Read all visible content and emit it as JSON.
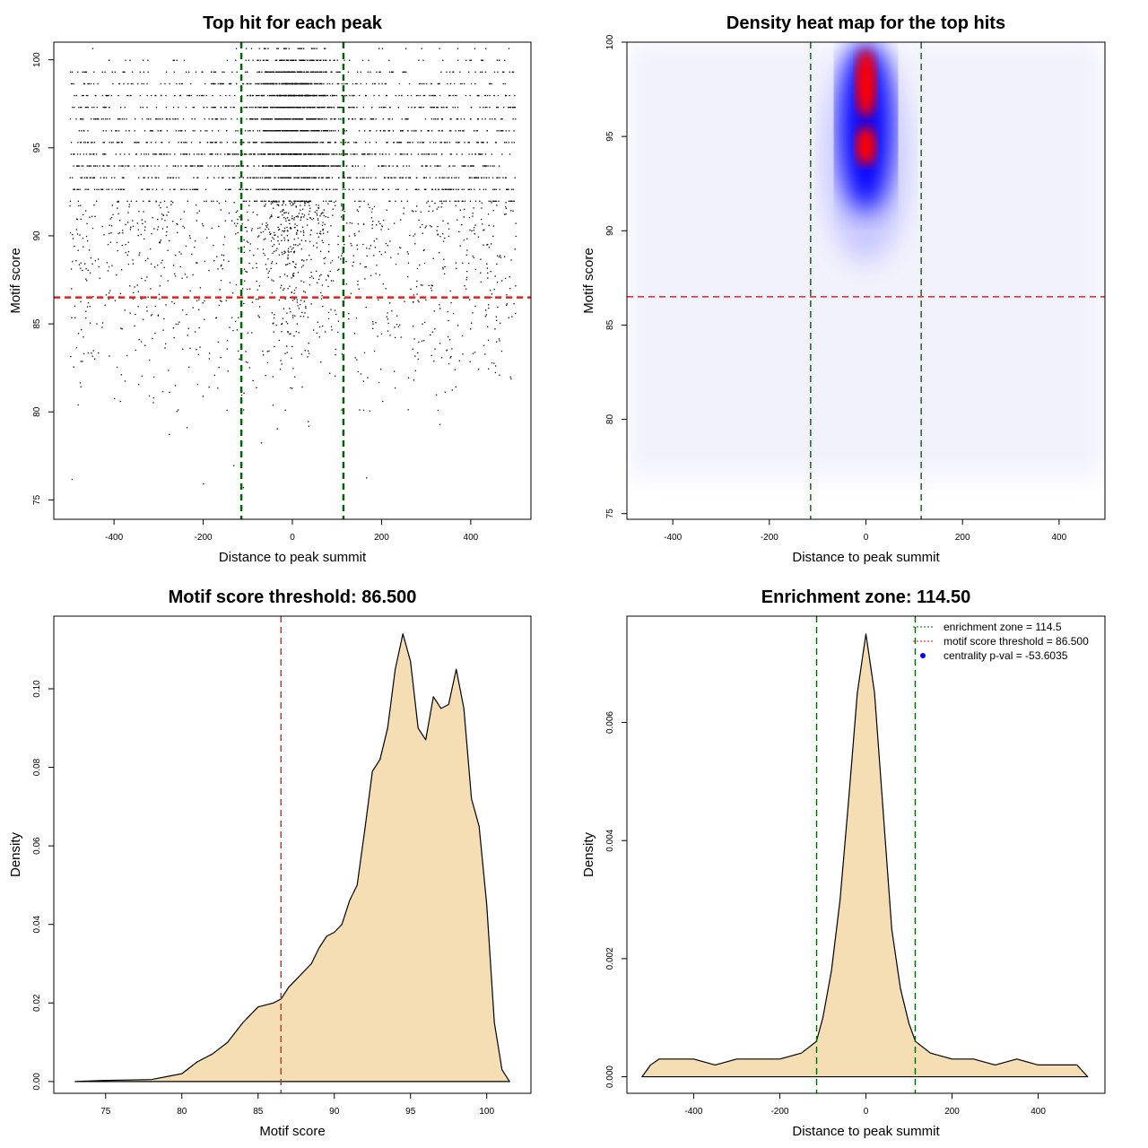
{
  "chart_data": [
    {
      "type": "scatter",
      "title": "Top hit for each peak",
      "xlabel": "Distance to peak summit",
      "ylabel": "Motif score",
      "xlim": [
        -535,
        535
      ],
      "ylim": [
        73.9,
        101
      ],
      "xticks": [
        -400,
        -200,
        0,
        200,
        400
      ],
      "yticks": [
        75,
        80,
        85,
        90,
        95,
        100
      ],
      "vlines": [
        -114.5,
        114.5
      ],
      "hline": 86.5,
      "points_summary": {
        "n": 4500,
        "x_range": [
          -500,
          500
        ],
        "central_fraction": 0.55,
        "central_sd": 45
      }
    },
    {
      "type": "heatmap",
      "title": "Density heat map for the top hits",
      "xlabel": "Distance to peak summit",
      "ylabel": "Motif score",
      "xlim": [
        -495,
        495
      ],
      "ylim": [
        74.7,
        100
      ],
      "xticks": [
        -400,
        -200,
        0,
        200,
        400
      ],
      "yticks": [
        75,
        80,
        85,
        90,
        95,
        100
      ],
      "vlines": [
        -114.5,
        114.5
      ],
      "hline": 86.5,
      "hotspots": [
        {
          "x": 0,
          "y": 97.8,
          "level": "high"
        },
        {
          "x": 0,
          "y": 94.5,
          "level": "high"
        }
      ],
      "colors": {
        "low": "#ffffff",
        "mid": "#0000ff",
        "high": "#ff0000"
      }
    },
    {
      "type": "area",
      "title": "Motif score threshold: 86.500",
      "xlabel": "Motif score",
      "ylabel": "Density",
      "xlim": [
        71.6,
        102.9
      ],
      "ylim": [
        -0.003,
        0.1185
      ],
      "xticks": [
        75,
        80,
        85,
        90,
        95,
        100
      ],
      "yticks": [
        0.0,
        0.02,
        0.04,
        0.06,
        0.08,
        0.1
      ],
      "ytick_labels": [
        "0.00",
        "0.02",
        "0.04",
        "0.06",
        "0.08",
        "0.10"
      ],
      "vlines": [
        86.5
      ],
      "x": [
        73,
        75,
        78,
        80,
        81,
        82,
        83,
        84,
        85,
        86,
        86.5,
        87,
        88,
        88.5,
        89,
        89.5,
        90,
        90.5,
        91,
        91.5,
        92,
        92.5,
        93,
        93.5,
        94,
        94.5,
        95,
        95.5,
        96,
        96.5,
        97,
        97.5,
        98,
        98.5,
        99,
        99.5,
        100,
        100.5,
        101,
        101.5
      ],
      "y": [
        0,
        0.0003,
        0.0005,
        0.002,
        0.005,
        0.007,
        0.01,
        0.015,
        0.019,
        0.02,
        0.021,
        0.024,
        0.028,
        0.03,
        0.034,
        0.037,
        0.038,
        0.04,
        0.046,
        0.05,
        0.064,
        0.079,
        0.082,
        0.09,
        0.105,
        0.114,
        0.107,
        0.09,
        0.087,
        0.098,
        0.095,
        0.096,
        0.105,
        0.095,
        0.072,
        0.065,
        0.045,
        0.015,
        0.003,
        0
      ]
    },
    {
      "type": "area",
      "title": "Enrichment zone: 114.50",
      "xlabel": "Distance to peak summit",
      "ylabel": "Density",
      "xlim": [
        -555,
        555
      ],
      "ylim": [
        -0.00028,
        0.0078
      ],
      "xticks": [
        -400,
        -200,
        0,
        200,
        400
      ],
      "yticks": [
        0,
        0.002,
        0.004,
        0.006
      ],
      "ytick_labels": [
        "0.000",
        "0.002",
        "0.004",
        "0.006"
      ],
      "vlines": [
        -114.5,
        114.5
      ],
      "x": [
        -520,
        -500,
        -480,
        -450,
        -400,
        -350,
        -300,
        -250,
        -200,
        -150,
        -115,
        -100,
        -80,
        -60,
        -40,
        -20,
        0,
        20,
        40,
        60,
        80,
        100,
        115,
        150,
        200,
        250,
        300,
        350,
        400,
        450,
        490,
        515
      ],
      "y": [
        0,
        0.0002,
        0.0003,
        0.0003,
        0.0003,
        0.0002,
        0.0003,
        0.0003,
        0.0003,
        0.0004,
        0.0006,
        0.001,
        0.0018,
        0.003,
        0.0047,
        0.0065,
        0.0075,
        0.0065,
        0.0045,
        0.0025,
        0.0015,
        0.0009,
        0.0006,
        0.0004,
        0.0003,
        0.0003,
        0.0002,
        0.0003,
        0.0002,
        0.0002,
        0.0002,
        0
      ],
      "legend": {
        "position": "top-right",
        "entries": [
          {
            "label": "enrichment zone = 114.5",
            "color": "#006400",
            "style": "dotted-line"
          },
          {
            "label": "motif score threshold = 86.500",
            "color": "#ff0000",
            "style": "dotted-line"
          },
          {
            "label": "centrality p-val = -53.6035",
            "color": "#0000ff",
            "style": "point"
          }
        ]
      }
    }
  ],
  "colors": {
    "threshold": "#dd2222",
    "zone": "#006400",
    "fill": "#f5deb3"
  }
}
